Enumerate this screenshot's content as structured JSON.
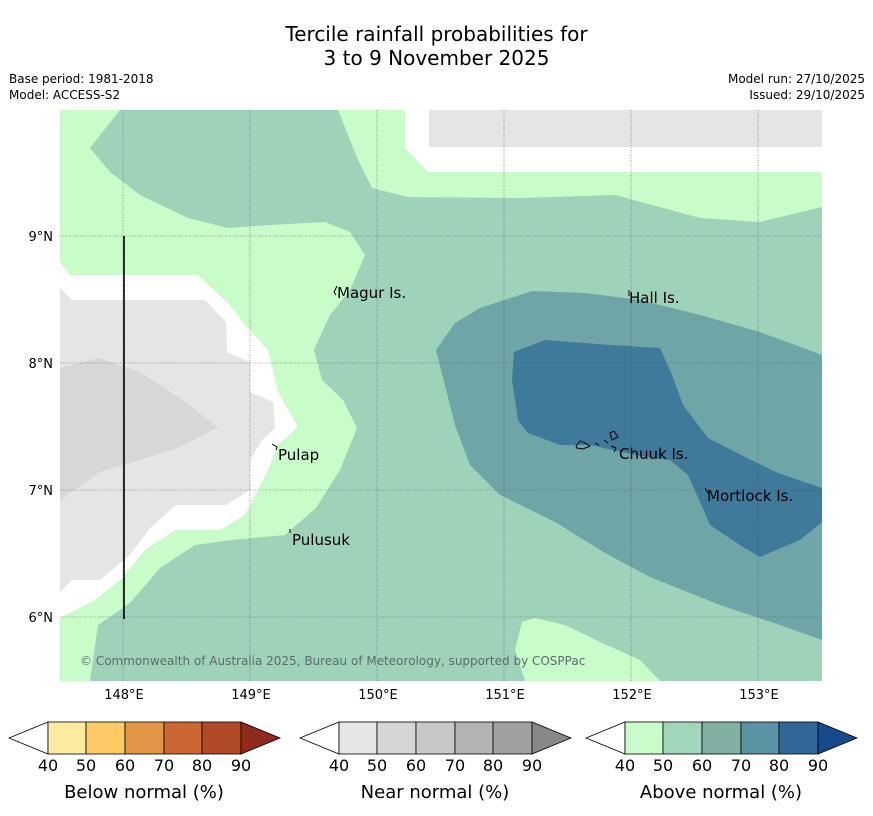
{
  "title": {
    "line1": "Tercile rainfall probabilities for",
    "line2": "3 to 9 November 2025"
  },
  "meta": {
    "base_period": "Base period: 1981-2018",
    "model": "Model: ACCESS-S2",
    "model_run": "Model run: 27/10/2025",
    "issued": "Issued: 29/10/2025"
  },
  "map": {
    "x_ticks": [
      "148°E",
      "149°E",
      "150°E",
      "151°E",
      "152°E",
      "153°E"
    ],
    "y_ticks": [
      "9°N",
      "8°N",
      "7°N",
      "6°N"
    ],
    "places": [
      "Magur Is.",
      "Hall Is.",
      "Pulap",
      "Chuuk Is.",
      "Mortlock Is.",
      "Pulusuk"
    ],
    "copyright": "© Commonwealth of Australia 2025, Bureau of Meteorology, supported by COSPPac"
  },
  "legend": {
    "tick_labels": [
      "40",
      "50",
      "60",
      "70",
      "80",
      "90"
    ],
    "below": {
      "title": "Below normal (%)",
      "colors": [
        "#ffffff",
        "#fdeca0",
        "#fccb66",
        "#e29647",
        "#cc6633",
        "#b24a28",
        "#8f2a1e"
      ]
    },
    "near": {
      "title": "Near normal (%)",
      "colors": [
        "#ffffff",
        "#e6e6e6",
        "#d6d6d6",
        "#c8c8c8",
        "#b3b3b3",
        "#a0a0a0",
        "#888888"
      ]
    },
    "above": {
      "title": "Above normal (%)",
      "colors": [
        "#ffffff",
        "#c8fcc8",
        "#a0d6b9",
        "#80b0a3",
        "#5a93a3",
        "#336699",
        "#164a8a"
      ]
    }
  }
}
